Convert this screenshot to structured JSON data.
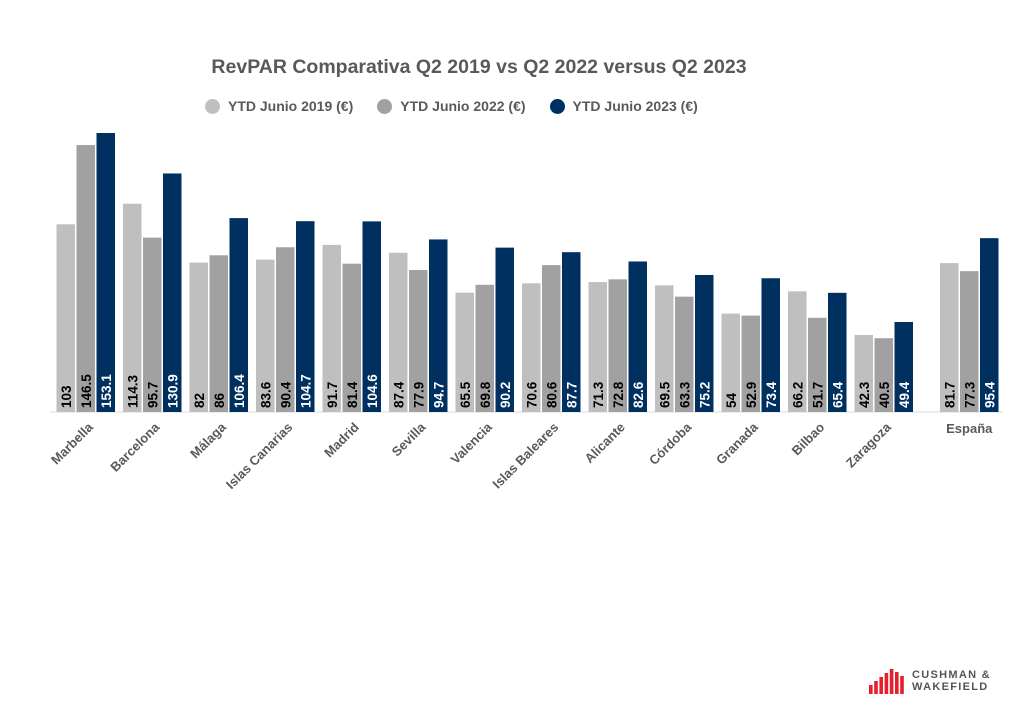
{
  "chart_data": {
    "type": "bar",
    "title": "RevPAR Comparativa Q2 2019 vs Q2 2022 versus Q2 2023",
    "categories": [
      "Marbella",
      "Barcelona",
      "Málaga",
      "Islas Canarias",
      "Madrid",
      "Sevilla",
      "Valencia",
      "Islas Baleares",
      "Alicante",
      "Córdoba",
      "Granada",
      "Bilbao",
      "Zaragoza",
      "España"
    ],
    "series": [
      {
        "name": "YTD Junio 2019 (€)",
        "color": "#bfbfbf",
        "label_color": "#000000",
        "values": [
          103,
          114.3,
          82,
          83.6,
          91.7,
          87.4,
          65.5,
          70.6,
          71.3,
          69.5,
          54,
          66.2,
          42.3,
          81.7
        ]
      },
      {
        "name": "YTD Junio 2022 (€)",
        "color": "#a1a1a1",
        "label_color": "#000000",
        "values": [
          146.5,
          95.7,
          86,
          90.4,
          81.4,
          77.9,
          69.8,
          80.6,
          72.8,
          63.3,
          52.9,
          51.7,
          40.5,
          77.3
        ]
      },
      {
        "name": "YTD Junio 2023 (€)",
        "color": "#00305f",
        "label_color": "#ffffff",
        "values": [
          153.1,
          130.9,
          106.4,
          104.7,
          104.6,
          94.7,
          90.2,
          87.7,
          82.6,
          75.2,
          73.4,
          65.4,
          49.4,
          95.4
        ]
      }
    ],
    "xlabel": "",
    "ylabel": "",
    "ylim": [
      0,
      153.1
    ],
    "grid": false,
    "legend_position": "top"
  },
  "brand": {
    "line1": "CUSHMAN &",
    "line2": "WAKEFIELD",
    "color": "#e3202c"
  }
}
